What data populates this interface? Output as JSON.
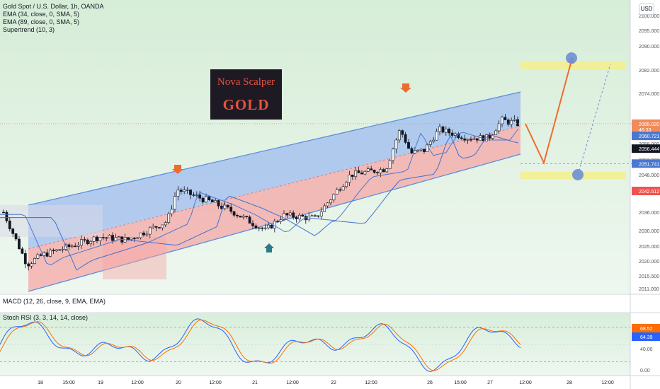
{
  "symbol": {
    "title": "Gold Spot / U.S. Dollar, 1h, OANDA",
    "indicators": [
      "EMA (34, close, 0, SMA, 5)",
      "EMA (89, close, 0, SMA, 5)",
      "Supertrend (10, 3)"
    ]
  },
  "currency_button": "USD",
  "logo": {
    "line1": "Nova Scalper",
    "line2": "GOLD"
  },
  "colors": {
    "up": "#26a69a",
    "down": "#ef5350",
    "candle_up": "#ffffff",
    "candle_down": "#131722",
    "channel_upper": "#5b8fd9",
    "channel_lower": "#f28b8b",
    "ema34": "#4b77cf",
    "ema89": "#3f6fd0",
    "arrow": "#ee6b2f",
    "support_arrow": "#2a7a8b",
    "zone": "#f3f08f",
    "target": "#6d8fd6",
    "macd": "#2962ff",
    "signal": "#ff6d00",
    "rsi_k": "#2962ff",
    "rsi_d": "#ff6d00"
  },
  "chart_data": [
    {
      "type": "candlestick",
      "title": "Gold Spot / U.S. Dollar, 1h, OANDA",
      "ylim": [
        2011.0,
        2100.0
      ],
      "y_ticks": [
        2011.0,
        2015.5,
        2020.0,
        2025.0,
        2030.0,
        2036.0,
        2042.512,
        2048.0,
        2053.0,
        2058.0,
        2065.0,
        2074.0,
        2082.0,
        2090.0,
        2095.0,
        2100.0
      ],
      "y_tick_labels": [
        "2011.000",
        "2015.500",
        "2020.000",
        "2025.000",
        "2030.000",
        "2036.000",
        "2042.512",
        "2048.000",
        "2053.000",
        "2058.000",
        "2065.000",
        "2074.000",
        "2082.000",
        "2090.000",
        "2095.000",
        "2100.000"
      ],
      "x_tick_labels": [
        "18",
        "15:00",
        "19",
        "12:00",
        "20",
        "12:00",
        "21",
        "12:00",
        "22",
        "12:00",
        "26",
        "15:00",
        "27",
        "12:00",
        "28",
        "12:00"
      ],
      "price_labels": [
        {
          "value": 2065.02,
          "text": "2065.020",
          "sub": "46:33",
          "color": "#f08b5c"
        },
        {
          "value": 2060.721,
          "text": "2060.721",
          "color": "#4b77cf"
        },
        {
          "value": 2056.444,
          "text": "2056.444",
          "color": "#131722"
        },
        {
          "value": 2051.741,
          "text": "2051.741",
          "color": "#4b77cf"
        },
        {
          "value": 2042.512,
          "text": "2042.512",
          "color": "#ef5350"
        }
      ],
      "current_price": 2065.02,
      "projection": {
        "low": 2052.0,
        "high": 2086.0,
        "upper_zone": [
          2082.0,
          2085.0
        ],
        "lower_zone": [
          2046.5,
          2049.0
        ]
      },
      "annotations": [
        "sell-arrow-1",
        "sell-arrow-2",
        "buy-arrow-1"
      ]
    },
    {
      "type": "line",
      "title": "MACD (12, 26, close, 9, EMA, EMA)"
    },
    {
      "type": "line",
      "title": "Stoch RSI (3, 3, 14, 14, close)",
      "ylim": [
        0,
        100
      ],
      "y_ticks": [
        0,
        40,
        64.39,
        68.52
      ],
      "y_tick_labels": [
        "0.00",
        "40.00",
        "64.39",
        "68.52"
      ],
      "series": [
        {
          "name": "K",
          "last": 64.39
        },
        {
          "name": "D",
          "last": 68.52
        }
      ]
    }
  ]
}
